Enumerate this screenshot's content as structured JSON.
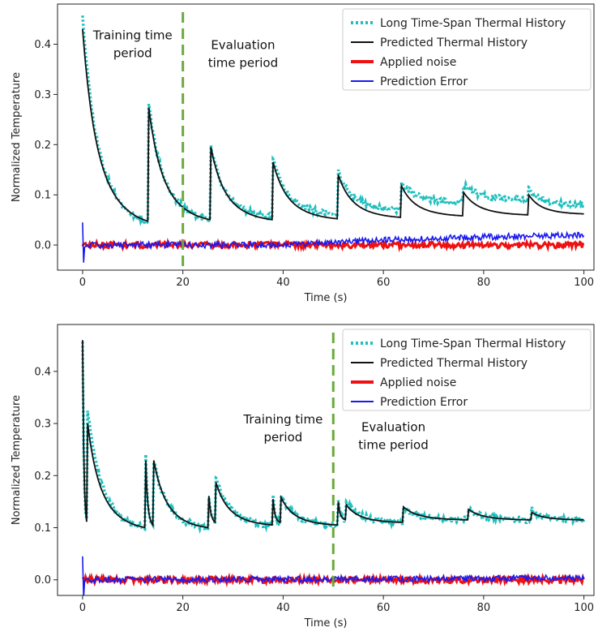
{
  "colors": {
    "long_history": "#1fbfbf",
    "predicted": "#111111",
    "noise": "#ee1111",
    "error": "#1a1aee",
    "divider": "#6aaa3a"
  },
  "chart_data": [
    {
      "type": "line",
      "xlabel": "Time (s)",
      "ylabel": "Normalized Temperature",
      "xlim": [
        -5,
        102
      ],
      "ylim": [
        -0.05,
        0.48
      ],
      "xticks": [
        0,
        20,
        40,
        60,
        80,
        100
      ],
      "yticks": [
        0.0,
        0.1,
        0.2,
        0.3,
        0.4
      ],
      "tick_labels_x": [
        "0",
        "20",
        "40",
        "60",
        "80",
        "100"
      ],
      "tick_labels_y": [
        "0.0",
        "0.1",
        "0.2",
        "0.3",
        "0.4"
      ],
      "legend": [
        "Long Time-Span Thermal History",
        "Predicted Thermal History",
        "Applied noise",
        "Prediction Error"
      ],
      "legend_position": "top-right",
      "divider_x": 20,
      "annotations": [
        {
          "lines": [
            "Training time",
            "period"
          ],
          "x": 10,
          "y": 0.41
        },
        {
          "lines": [
            "Evaluation",
            "time period"
          ],
          "x": 32,
          "y": 0.39
        }
      ],
      "peaks": [
        {
          "t": 0,
          "peak_obs": 0.46,
          "peak_pred": 0.43,
          "end_obs": 0.045,
          "end_pred": 0.047
        },
        {
          "t": 13,
          "peak_obs": 0.3,
          "peak_pred": 0.29,
          "end_obs": 0.05,
          "end_pred": 0.05
        },
        {
          "t": 25.5,
          "peak_obs": 0.2,
          "peak_pred": 0.2,
          "end_obs": 0.055,
          "end_pred": 0.05
        },
        {
          "t": 38,
          "peak_obs": 0.17,
          "peak_pred": 0.165,
          "end_obs": 0.06,
          "end_pred": 0.052
        },
        {
          "t": 51,
          "peak_obs": 0.145,
          "peak_pred": 0.14,
          "end_obs": 0.07,
          "end_pred": 0.055
        },
        {
          "t": 63.5,
          "peak_obs": 0.125,
          "peak_pred": 0.12,
          "end_obs": 0.085,
          "end_pred": 0.058
        },
        {
          "t": 76,
          "peak_obs": 0.12,
          "peak_pred": 0.105,
          "end_obs": 0.09,
          "end_pred": 0.06
        },
        {
          "t": 89,
          "peak_obs": 0.11,
          "peak_pred": 0.1,
          "end_obs": 0.08,
          "end_pred": 0.062
        }
      ],
      "t_end": 100,
      "error_trend": [
        [
          0,
          0.0
        ],
        [
          40,
          0.0
        ],
        [
          60,
          0.01
        ],
        [
          80,
          0.016
        ],
        [
          100,
          0.02
        ]
      ]
    },
    {
      "type": "line",
      "xlabel": "Time (s)",
      "ylabel": "Normalized Temperature",
      "xlim": [
        -5,
        102
      ],
      "ylim": [
        -0.03,
        0.49
      ],
      "xticks": [
        0,
        20,
        40,
        60,
        80,
        100
      ],
      "yticks": [
        0.0,
        0.1,
        0.2,
        0.3,
        0.4
      ],
      "tick_labels_x": [
        "0",
        "20",
        "40",
        "60",
        "80",
        "100"
      ],
      "tick_labels_y": [
        "0.0",
        "0.1",
        "0.2",
        "0.3",
        "0.4"
      ],
      "legend": [
        "Long Time-Span Thermal History",
        "Predicted Thermal History",
        "Applied noise",
        "Prediction Error"
      ],
      "legend_position": "top-right",
      "divider_x": 50,
      "annotations": [
        {
          "lines": [
            "Training time",
            "period"
          ],
          "x": 40,
          "y": 0.3
        },
        {
          "lines": [
            "Evaluation",
            "time period"
          ],
          "x": 62,
          "y": 0.285
        }
      ],
      "peaks": [
        {
          "t": 0,
          "peak_obs": 0.46,
          "peak_pred": 0.46,
          "end_obs": 0.1,
          "end_pred": 0.1
        },
        {
          "t": 1,
          "peak_obs": 0.33,
          "peak_pred": 0.3,
          "end_obs": 0.1,
          "end_pred": 0.1
        },
        {
          "t": 12.5,
          "peak_obs": 0.28,
          "peak_pred": 0.27,
          "end_obs": 0.105,
          "end_pred": 0.105
        },
        {
          "t": 14,
          "peak_obs": 0.24,
          "peak_pred": 0.24,
          "end_obs": 0.1,
          "end_pred": 0.1
        },
        {
          "t": 25,
          "peak_obs": 0.2,
          "peak_pred": 0.2,
          "end_obs": 0.11,
          "end_pred": 0.11
        },
        {
          "t": 26.5,
          "peak_obs": 0.2,
          "peak_pred": 0.19,
          "end_obs": 0.105,
          "end_pred": 0.105
        },
        {
          "t": 38,
          "peak_obs": 0.16,
          "peak_pred": 0.155,
          "end_obs": 0.11,
          "end_pred": 0.11
        },
        {
          "t": 39.5,
          "peak_obs": 0.165,
          "peak_pred": 0.16,
          "end_obs": 0.105,
          "end_pred": 0.105
        },
        {
          "t": 51,
          "peak_obs": 0.15,
          "peak_pred": 0.15,
          "end_obs": 0.115,
          "end_pred": 0.115
        },
        {
          "t": 52.5,
          "peak_obs": 0.15,
          "peak_pred": 0.145,
          "end_obs": 0.11,
          "end_pred": 0.11
        },
        {
          "t": 64,
          "peak_obs": 0.14,
          "peak_pred": 0.14,
          "end_obs": 0.115,
          "end_pred": 0.115
        },
        {
          "t": 77,
          "peak_obs": 0.135,
          "peak_pred": 0.135,
          "end_obs": 0.115,
          "end_pred": 0.115
        },
        {
          "t": 89.5,
          "peak_obs": 0.135,
          "peak_pred": 0.13,
          "end_obs": 0.115,
          "end_pred": 0.115
        }
      ],
      "t_end": 100,
      "error_trend": [
        [
          0,
          0.0
        ],
        [
          100,
          0.003
        ]
      ]
    }
  ]
}
